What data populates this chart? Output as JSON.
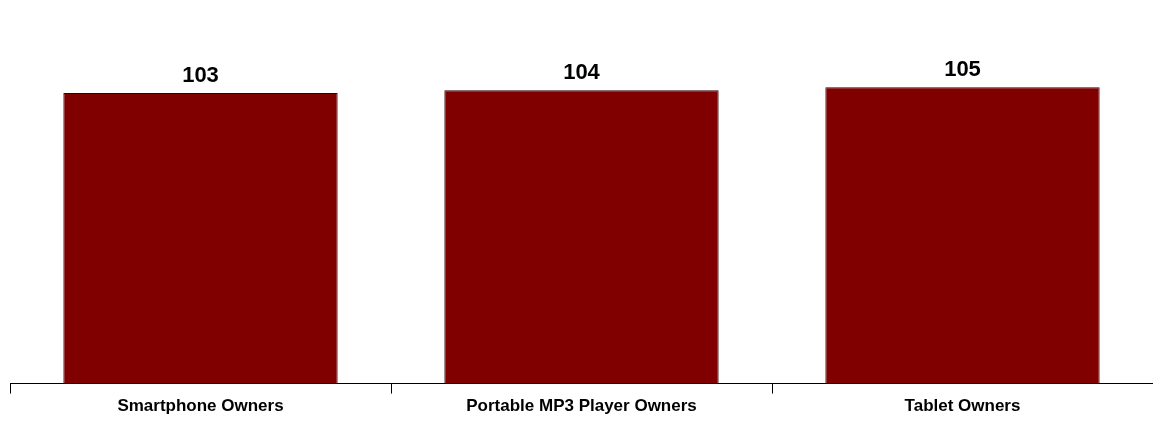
{
  "chart_data": {
    "type": "bar",
    "categories": [
      "Smartphone Owners",
      "Portable MP3 Player Owners",
      "Tablet Owners"
    ],
    "values": [
      103,
      104,
      105
    ],
    "color": "#800000",
    "data_labels": true,
    "grid": false,
    "legend": false,
    "tick_labels": "x"
  }
}
